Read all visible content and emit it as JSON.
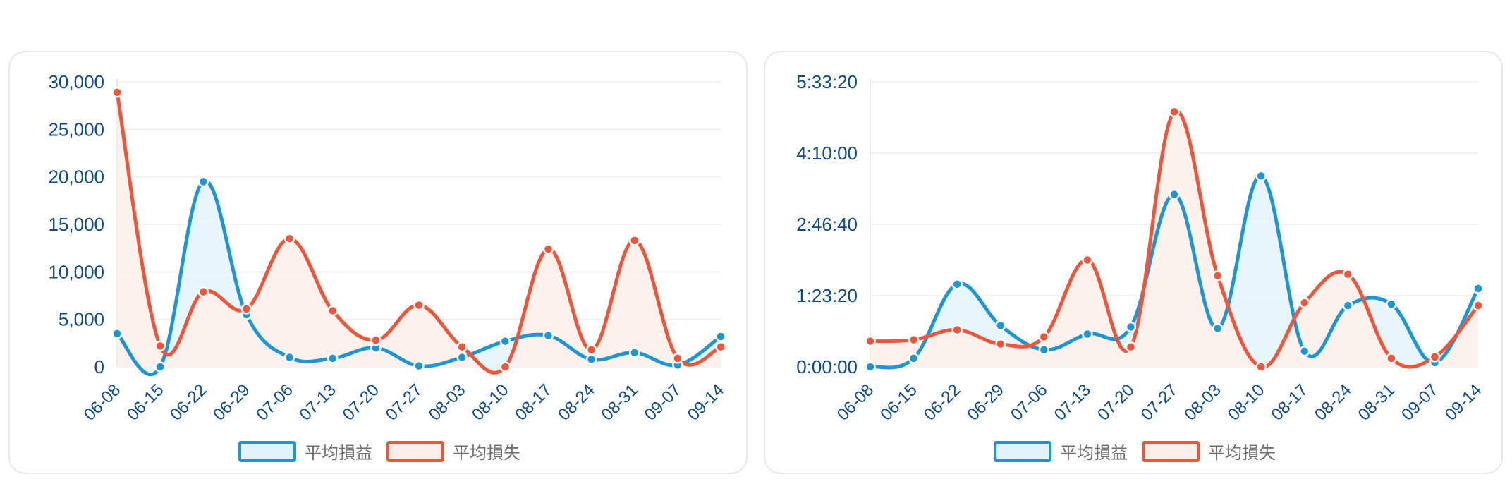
{
  "colors": {
    "blue": "#1e96d3",
    "red": "#ef553b",
    "blue_fill": "#e3f3fb",
    "red_fill": "#fdeee9",
    "grid": "#eceef2",
    "axis_text": "#0d4a8a",
    "legend_text": "#6e6e6e"
  },
  "chart_data": [
    {
      "type": "area",
      "categories": [
        "06-08",
        "06-15",
        "06-22",
        "06-29",
        "07-06",
        "07-13",
        "07-20",
        "07-27",
        "08-03",
        "08-10",
        "08-17",
        "08-24",
        "08-31",
        "09-07",
        "09-14"
      ],
      "y_ticks": [
        "30,000",
        "25,000",
        "20,000",
        "15,000",
        "10,000",
        "5,000",
        "0"
      ],
      "ylim": [
        0,
        30000
      ],
      "grid": true,
      "legend_position": "bottom-center",
      "series": [
        {
          "name": "平均損益",
          "color": "#1e96d3",
          "values": [
            3500,
            0,
            19500,
            5500,
            1000,
            900,
            2000,
            100,
            1000,
            2700,
            3300,
            800,
            1500,
            200,
            3200
          ]
        },
        {
          "name": "平均損失",
          "color": "#ef553b",
          "values": [
            28900,
            2200,
            7900,
            6100,
            13500,
            5900,
            2800,
            6500,
            2100,
            0,
            12400,
            1800,
            13300,
            900,
            2100
          ]
        }
      ]
    },
    {
      "type": "area",
      "categories": [
        "06-08",
        "06-15",
        "06-22",
        "06-29",
        "07-06",
        "07-13",
        "07-20",
        "07-27",
        "08-03",
        "08-10",
        "08-17",
        "08-24",
        "08-31",
        "09-07",
        "09-14"
      ],
      "y_ticks": [
        "5:33:20",
        "4:10:00",
        "2:46:40",
        "1:23:20",
        "0:00:00"
      ],
      "ylim": [
        0,
        20000
      ],
      "grid": true,
      "legend_position": "bottom-center",
      "series": [
        {
          "name": "平均損益",
          "color": "#1e96d3",
          "values": [
            0,
            600,
            5800,
            2900,
            1200,
            2300,
            2800,
            12100,
            2700,
            13400,
            1100,
            4300,
            4400,
            300,
            5500
          ]
        },
        {
          "name": "平均損失",
          "color": "#ef553b",
          "values": [
            1800,
            1900,
            2600,
            1600,
            2100,
            7500,
            1400,
            17900,
            6400,
            0,
            4500,
            6500,
            600,
            700,
            4300
          ]
        }
      ]
    }
  ]
}
